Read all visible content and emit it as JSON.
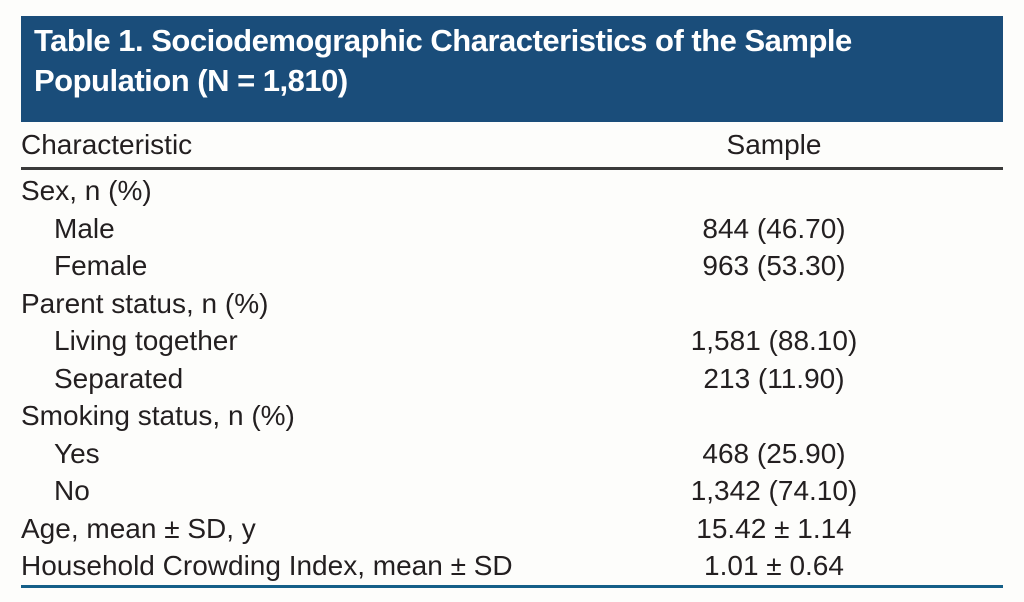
{
  "title": {
    "line1": "Table 1. Sociodemographic Characteristics of the Sample",
    "line2": "Population (N = 1,810)"
  },
  "table": {
    "columns": [
      "Characteristic",
      "Sample"
    ],
    "rows": [
      {
        "label": "Sex, n (%)",
        "value": "",
        "indent": 0
      },
      {
        "label": "Male",
        "value": "844 (46.70)",
        "indent": 1
      },
      {
        "label": "Female",
        "value": "963 (53.30)",
        "indent": 1
      },
      {
        "label": "Parent status, n (%)",
        "value": "",
        "indent": 0
      },
      {
        "label": "Living together",
        "value": "1,581 (88.10)",
        "indent": 1
      },
      {
        "label": "Separated",
        "value": "213 (11.90)",
        "indent": 1
      },
      {
        "label": "Smoking status, n (%)",
        "value": "",
        "indent": 0
      },
      {
        "label": "Yes",
        "value": "468 (25.90)",
        "indent": 1
      },
      {
        "label": "No",
        "value": "1,342 (74.10)",
        "indent": 1
      },
      {
        "label": "Age, mean ± SD, y",
        "value": "15.42 ± 1.14",
        "indent": 0
      },
      {
        "label": "Household Crowding Index, mean ± SD",
        "value": "1.01 ± 0.64",
        "indent": 0
      }
    ]
  },
  "colors": {
    "page_bg": "#fdfdfb",
    "title_bg": "#1a4d7a",
    "title_text": "#ffffff",
    "body_text": "#231f20",
    "header_rule": "#3a3a3a",
    "bottom_rule": "#155f88"
  }
}
